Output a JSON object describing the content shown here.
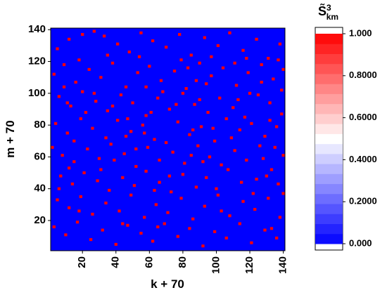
{
  "chart_data": {
    "type": "heatmap",
    "x_label": "k + 70",
    "y_label": "m + 70",
    "xlim": [
      1,
      141
    ],
    "ylim": [
      1,
      141
    ],
    "xticks": [
      20,
      40,
      60,
      80,
      100,
      120,
      140
    ],
    "yticks": [
      20,
      40,
      60,
      80,
      100,
      120,
      140
    ],
    "background_value": 0,
    "point_value": 1,
    "colorscale": [
      "#0000ff",
      "#ffffff",
      "#ff0000"
    ],
    "colorbar_title": "S̃",
    "colorbar_sup": "3",
    "colorbar_sub": "km",
    "colorbar_lim": [
      0,
      1
    ],
    "colorbar_ticks": [
      {
        "value": 0,
        "label": "0.000"
      },
      {
        "value": 0.2,
        "label": "0.2000"
      },
      {
        "value": 0.4,
        "label": "0.4000"
      },
      {
        "value": 0.6,
        "label": "0.6000"
      },
      {
        "value": 0.8,
        "label": "0.8000"
      },
      {
        "value": 1,
        "label": "1.000"
      }
    ],
    "points": [
      [
        5,
        128
      ],
      [
        12,
        134
      ],
      [
        18,
        121
      ],
      [
        27,
        139
      ],
      [
        33,
        136
      ],
      [
        41,
        131
      ],
      [
        48,
        126
      ],
      [
        55,
        138
      ],
      [
        62,
        133
      ],
      [
        70,
        129
      ],
      [
        78,
        137
      ],
      [
        85,
        124
      ],
      [
        93,
        135
      ],
      [
        101,
        130
      ],
      [
        108,
        138
      ],
      [
        116,
        127
      ],
      [
        124,
        134
      ],
      [
        131,
        122
      ],
      [
        138,
        131
      ],
      [
        3,
        112
      ],
      [
        9,
        118
      ],
      [
        16,
        107
      ],
      [
        24,
        115
      ],
      [
        31,
        110
      ],
      [
        38,
        119
      ],
      [
        46,
        104
      ],
      [
        53,
        113
      ],
      [
        60,
        117
      ],
      [
        67,
        108
      ],
      [
        75,
        114
      ],
      [
        82,
        103
      ],
      [
        90,
        119
      ],
      [
        97,
        111
      ],
      [
        104,
        116
      ],
      [
        112,
        105
      ],
      [
        119,
        113
      ],
      [
        127,
        118
      ],
      [
        134,
        109
      ],
      [
        140,
        115
      ],
      [
        6,
        98
      ],
      [
        13,
        92
      ],
      [
        20,
        101
      ],
      [
        28,
        95
      ],
      [
        35,
        89
      ],
      [
        43,
        99
      ],
      [
        50,
        94
      ],
      [
        58,
        86
      ],
      [
        65,
        97
      ],
      [
        72,
        90
      ],
      [
        80,
        100
      ],
      [
        87,
        93
      ],
      [
        95,
        88
      ],
      [
        102,
        97
      ],
      [
        110,
        91
      ],
      [
        117,
        85
      ],
      [
        125,
        99
      ],
      [
        132,
        94
      ],
      [
        139,
        87
      ],
      [
        4,
        81
      ],
      [
        11,
        75
      ],
      [
        19,
        84
      ],
      [
        26,
        78
      ],
      [
        34,
        72
      ],
      [
        41,
        83
      ],
      [
        49,
        76
      ],
      [
        56,
        80
      ],
      [
        63,
        71
      ],
      [
        70,
        69
      ],
      [
        77,
        82
      ],
      [
        84,
        74
      ],
      [
        86,
        77
      ],
      [
        91,
        79
      ],
      [
        99,
        70
      ],
      [
        106,
        84
      ],
      [
        114,
        77
      ],
      [
        121,
        81
      ],
      [
        129,
        73
      ],
      [
        136,
        79
      ],
      [
        2,
        66
      ],
      [
        8,
        61
      ],
      [
        15,
        57
      ],
      [
        23,
        65
      ],
      [
        30,
        59
      ],
      [
        37,
        68
      ],
      [
        45,
        62
      ],
      [
        52,
        54
      ],
      [
        59,
        66
      ],
      [
        66,
        58
      ],
      [
        74,
        63
      ],
      [
        81,
        56
      ],
      [
        89,
        67
      ],
      [
        96,
        60
      ],
      [
        103,
        55
      ],
      [
        111,
        64
      ],
      [
        118,
        58
      ],
      [
        126,
        67
      ],
      [
        133,
        52
      ],
      [
        140,
        61
      ],
      [
        7,
        48
      ],
      [
        14,
        43
      ],
      [
        21,
        50
      ],
      [
        29,
        45
      ],
      [
        36,
        39
      ],
      [
        44,
        47
      ],
      [
        51,
        42
      ],
      [
        58,
        51
      ],
      [
        66,
        44
      ],
      [
        73,
        38
      ],
      [
        80,
        49
      ],
      [
        88,
        41
      ],
      [
        94,
        47
      ],
      [
        100,
        40
      ],
      [
        107,
        52
      ],
      [
        115,
        44
      ],
      [
        122,
        37
      ],
      [
        130,
        48
      ],
      [
        137,
        43
      ],
      [
        5,
        33
      ],
      [
        12,
        28
      ],
      [
        19,
        35
      ],
      [
        26,
        24
      ],
      [
        34,
        31
      ],
      [
        42,
        26
      ],
      [
        49,
        36
      ],
      [
        57,
        22
      ],
      [
        64,
        30
      ],
      [
        71,
        25
      ],
      [
        79,
        34
      ],
      [
        86,
        21
      ],
      [
        93,
        29
      ],
      [
        101,
        36
      ],
      [
        108,
        23
      ],
      [
        116,
        32
      ],
      [
        123,
        27
      ],
      [
        131,
        34
      ],
      [
        138,
        22
      ],
      [
        3,
        16
      ],
      [
        10,
        11
      ],
      [
        17,
        19
      ],
      [
        25,
        8
      ],
      [
        32,
        14
      ],
      [
        40,
        5
      ],
      [
        47,
        17
      ],
      [
        55,
        12
      ],
      [
        62,
        7
      ],
      [
        69,
        18
      ],
      [
        77,
        10
      ],
      [
        84,
        15
      ],
      [
        92,
        4
      ],
      [
        99,
        13
      ],
      [
        106,
        9
      ],
      [
        114,
        18
      ],
      [
        121,
        6
      ],
      [
        129,
        14
      ],
      [
        136,
        9
      ],
      [
        9,
        104
      ],
      [
        22,
        88
      ],
      [
        38,
        92
      ],
      [
        54,
        123
      ],
      [
        68,
        101
      ],
      [
        83,
        116
      ],
      [
        98,
        78
      ],
      [
        113,
        96
      ],
      [
        128,
        59
      ],
      [
        139,
        102
      ],
      [
        15,
        70
      ],
      [
        31,
        52
      ],
      [
        47,
        84
      ],
      [
        63,
        39
      ],
      [
        79,
        121
      ],
      [
        94,
        106
      ],
      [
        109,
        72
      ],
      [
        124,
        46
      ],
      [
        135,
        66
      ],
      [
        18,
        26
      ],
      [
        39,
        58
      ],
      [
        57,
        75
      ],
      [
        76,
        93
      ],
      [
        92,
        57
      ],
      [
        118,
        122
      ],
      [
        132,
        83
      ],
      [
        6,
        40
      ],
      [
        27,
        100
      ],
      [
        44,
        18
      ],
      [
        61,
        88
      ],
      [
        88,
        108
      ],
      [
        103,
        26
      ],
      [
        127,
        107
      ],
      [
        140,
        37
      ],
      [
        12,
        53
      ],
      [
        35,
        124
      ],
      [
        52,
        65
      ],
      [
        72,
        48
      ],
      [
        90,
        96
      ],
      [
        111,
        119
      ],
      [
        133,
        15
      ],
      [
        20,
        137
      ],
      [
        46,
        73
      ],
      [
        85,
        61
      ],
      [
        120,
        100
      ],
      [
        65,
        16
      ],
      [
        97,
        123
      ],
      [
        11,
        94
      ],
      [
        58,
        104
      ],
      [
        137,
        121
      ]
    ]
  }
}
